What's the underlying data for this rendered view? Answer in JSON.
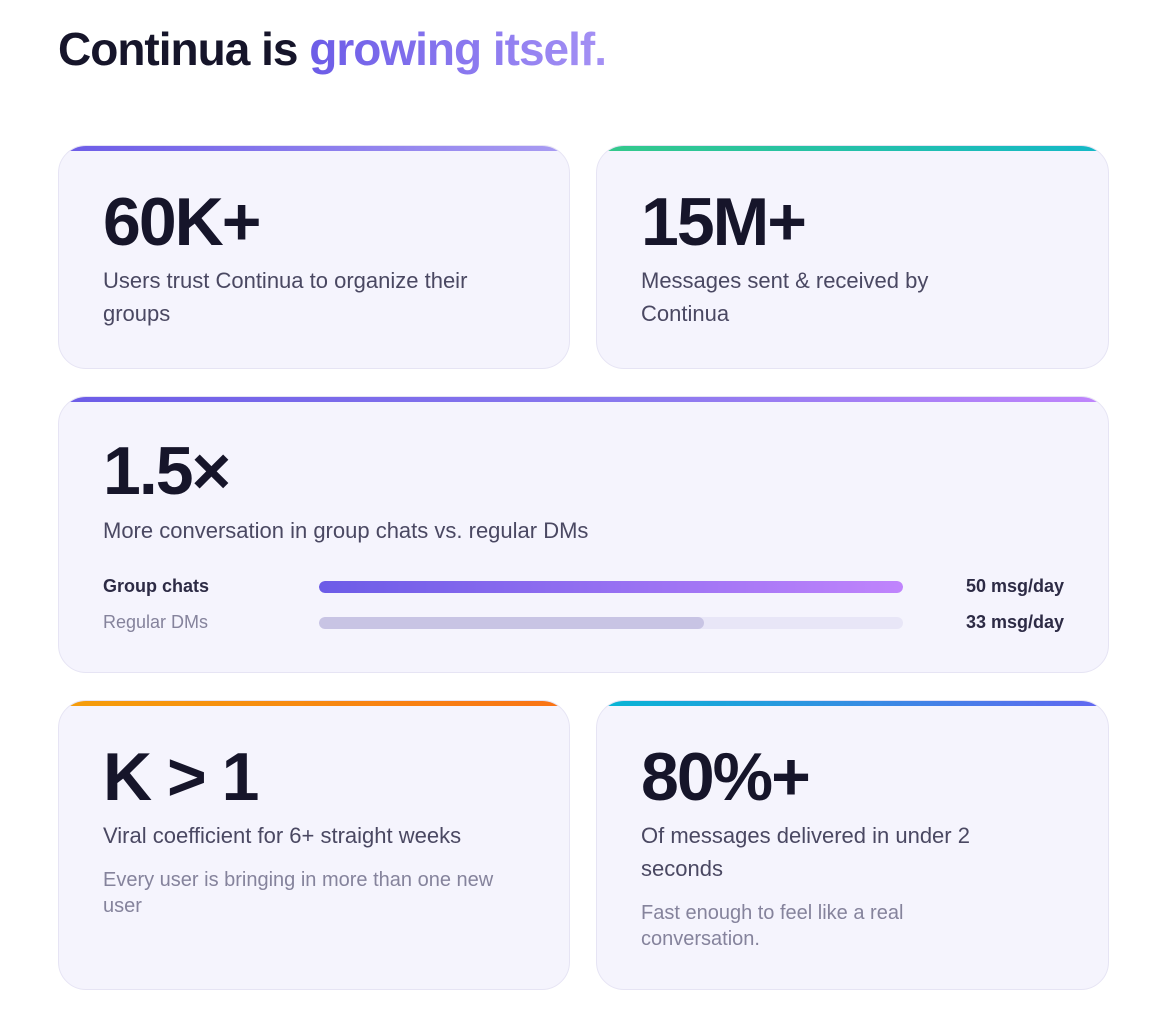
{
  "header": {
    "title_prefix": "Continua is ",
    "title_accent": "growing itself."
  },
  "stats": {
    "users": {
      "value": "60K+",
      "description": "Users trust Continua to organize their groups"
    },
    "messages": {
      "value": "15M+",
      "description": "Messages sent & received by Continua"
    },
    "conversation": {
      "value": "1.5×",
      "description": "More conversation in group chats vs. regular DMs",
      "bars": [
        {
          "label": "Group chats",
          "value_label": "50 msg/day",
          "value": 50
        },
        {
          "label": "Regular DMs",
          "value_label": "33 msg/day",
          "value": 33
        }
      ],
      "bar_max": 50
    },
    "viral": {
      "value": "K > 1",
      "description": "Viral coefficient for 6+ straight weeks",
      "subtext": "Every user is bringing in more than one new user"
    },
    "delivery": {
      "value": "80%+",
      "description": "Of messages delivered in under 2 seconds",
      "subtext": "Fast enough to feel like a real conversation."
    }
  },
  "colors": {
    "card_background": "#f5f4fd",
    "purple_start": "#6c5ce7",
    "purple_end": "#c084fc",
    "green_start": "#34c98a",
    "green_end": "#14b8c8",
    "orange_start": "#f59e0b",
    "orange_end": "#f97316",
    "teal_start": "#06b6d4",
    "teal_end": "#6366f1",
    "dm_bar_fill": "#c8c4e4"
  }
}
